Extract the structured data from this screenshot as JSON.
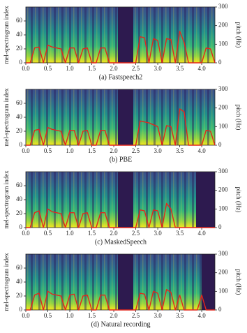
{
  "chart_data": [
    {
      "type": "line",
      "caption": "(a) Fastspeech2",
      "ylabel": "mel-spectrogram index",
      "y2label": "pitch (Hz)",
      "xlim": [
        0,
        4.3
      ],
      "xticks": [
        {
          "value": 0,
          "label": "0.0"
        },
        {
          "value": 0.5,
          "label": "0.5"
        },
        {
          "value": 1,
          "label": "1.0"
        },
        {
          "value": 1.5,
          "label": "1.5"
        },
        {
          "value": 2,
          "label": "2.0"
        },
        {
          "value": 2.5,
          "label": "2.5"
        },
        {
          "value": 3,
          "label": "3.0"
        },
        {
          "value": 3.5,
          "label": "3.5"
        },
        {
          "value": 4,
          "label": "4.0"
        }
      ],
      "ylim": [
        0,
        80
      ],
      "yticks": [
        0,
        20,
        40,
        60
      ],
      "y2lim": [
        0,
        300
      ],
      "y2ticks": [
        0,
        100,
        200,
        300
      ],
      "x": [
        0,
        0.1,
        0.2,
        0.3,
        0.4,
        0.5,
        0.6,
        0.7,
        0.8,
        0.9,
        1,
        1.1,
        1.2,
        1.3,
        1.4,
        1.5,
        1.6,
        1.7,
        1.8,
        1.9,
        2,
        2.1,
        2.2,
        2.3,
        2.4,
        2.5,
        2.6,
        2.7,
        2.8,
        2.9,
        3,
        3.1,
        3.2,
        3.3,
        3.4,
        3.5,
        3.6,
        3.7,
        3.8,
        3.9,
        4,
        4.1,
        4.2,
        4.3
      ],
      "series": [
        {
          "color": "#e3261c",
          "axis": "y2",
          "values": [
            0,
            0,
            80,
            85,
            0,
            95,
            85,
            80,
            75,
            0,
            80,
            80,
            0,
            75,
            80,
            0,
            0,
            80,
            80,
            0,
            0,
            0,
            0,
            0,
            0,
            0,
            140,
            135,
            0,
            130,
            120,
            0,
            130,
            125,
            0,
            170,
            110,
            0,
            0,
            0,
            0,
            80,
            75,
            0
          ]
        }
      ]
    },
    {
      "type": "line",
      "caption": "(b) PBE",
      "ylabel": "mel-spectrogram index",
      "y2label": "pitch (Hz)",
      "xlim": [
        0,
        4.3
      ],
      "xticks": [
        {
          "value": 0,
          "label": "0.0"
        },
        {
          "value": 0.5,
          "label": "0.5"
        },
        {
          "value": 1,
          "label": "1.0"
        },
        {
          "value": 1.5,
          "label": "1.5"
        },
        {
          "value": 2,
          "label": "2.0"
        },
        {
          "value": 2.5,
          "label": "2.5"
        },
        {
          "value": 3,
          "label": "3.0"
        },
        {
          "value": 3.5,
          "label": "3.5"
        },
        {
          "value": 4,
          "label": "4.0"
        }
      ],
      "ylim": [
        0,
        80
      ],
      "yticks": [
        0,
        20,
        40,
        60
      ],
      "y2lim": [
        0,
        300
      ],
      "y2ticks": [
        0,
        100,
        200,
        300
      ],
      "x": [
        0,
        0.1,
        0.2,
        0.3,
        0.4,
        0.5,
        0.6,
        0.7,
        0.8,
        0.9,
        1,
        1.1,
        1.2,
        1.3,
        1.4,
        1.5,
        1.6,
        1.7,
        1.8,
        1.9,
        2,
        2.1,
        2.2,
        2.3,
        2.4,
        2.5,
        2.6,
        2.7,
        2.8,
        2.9,
        3,
        3.1,
        3.2,
        3.3,
        3.4,
        3.5,
        3.6,
        3.7,
        3.8,
        3.9,
        4,
        4.1,
        4.2,
        4.3
      ],
      "series": [
        {
          "color": "#e3261c",
          "axis": "y2",
          "values": [
            0,
            0,
            80,
            85,
            0,
            95,
            85,
            80,
            75,
            0,
            80,
            80,
            0,
            75,
            80,
            0,
            0,
            80,
            80,
            0,
            0,
            0,
            0,
            0,
            0,
            0,
            130,
            125,
            120,
            110,
            100,
            0,
            105,
            100,
            0,
            195,
            180,
            0,
            0,
            0,
            0,
            80,
            75,
            0
          ]
        }
      ]
    },
    {
      "type": "line",
      "caption": "(c) MaskedSpeech",
      "ylabel": "mel-spectrogram index",
      "y2label": "pitch (Hz)",
      "xlim": [
        0,
        4.3
      ],
      "xticks": [
        {
          "value": 0,
          "label": "0.0"
        },
        {
          "value": 0.5,
          "label": "0.5"
        },
        {
          "value": 1,
          "label": "1.0"
        },
        {
          "value": 1.5,
          "label": "1.5"
        },
        {
          "value": 2,
          "label": "2.0"
        },
        {
          "value": 2.5,
          "label": "2.5"
        },
        {
          "value": 3,
          "label": "3.0"
        },
        {
          "value": 3.5,
          "label": "3.5"
        },
        {
          "value": 4,
          "label": "4.0"
        }
      ],
      "ylim": [
        0,
        80
      ],
      "yticks": [
        0,
        20,
        40,
        60
      ],
      "y2lim": [
        0,
        300
      ],
      "y2ticks": [
        0,
        100,
        200,
        300
      ],
      "x": [
        0,
        0.1,
        0.2,
        0.3,
        0.4,
        0.5,
        0.6,
        0.7,
        0.8,
        0.9,
        1,
        1.1,
        1.2,
        1.3,
        1.4,
        1.5,
        1.6,
        1.7,
        1.8,
        1.9,
        2,
        2.1,
        2.2,
        2.3,
        2.4,
        2.5,
        2.6,
        2.7,
        2.8,
        2.9,
        3,
        3.1,
        3.2,
        3.3,
        3.4,
        3.5,
        3.6,
        3.7,
        3.8,
        3.9,
        4,
        4.1,
        4.2,
        4.3
      ],
      "series": [
        {
          "color": "#e3261c",
          "axis": "y2",
          "values": [
            0,
            0,
            80,
            90,
            0,
            100,
            85,
            80,
            75,
            0,
            80,
            80,
            0,
            75,
            80,
            0,
            0,
            80,
            80,
            0,
            0,
            0,
            0,
            0,
            0,
            0,
            95,
            90,
            0,
            95,
            90,
            0,
            130,
            100,
            0,
            0,
            0,
            0,
            0,
            0,
            0,
            0,
            0,
            0
          ]
        }
      ]
    },
    {
      "type": "line",
      "caption": "(d) Natural recording",
      "ylabel": "mel-spectrogram index",
      "y2label": "pitch (Hz)",
      "xlim": [
        0,
        4.3
      ],
      "xticks": [
        {
          "value": 0,
          "label": "0.0"
        },
        {
          "value": 0.5,
          "label": "0.5"
        },
        {
          "value": 1,
          "label": "1.0"
        },
        {
          "value": 1.5,
          "label": "1.5"
        },
        {
          "value": 2,
          "label": "2.0"
        },
        {
          "value": 2.5,
          "label": "2.5"
        },
        {
          "value": 3,
          "label": "3.0"
        },
        {
          "value": 3.5,
          "label": "3.5"
        },
        {
          "value": 4,
          "label": "4.0"
        }
      ],
      "ylim": [
        0,
        80
      ],
      "yticks": [
        0,
        20,
        40,
        60
      ],
      "y2lim": [
        0,
        300
      ],
      "y2ticks": [
        0,
        100,
        200,
        300
      ],
      "x": [
        0,
        0.1,
        0.2,
        0.3,
        0.4,
        0.5,
        0.6,
        0.7,
        0.8,
        0.9,
        1,
        1.1,
        1.2,
        1.3,
        1.4,
        1.5,
        1.6,
        1.7,
        1.8,
        1.9,
        2,
        2.1,
        2.2,
        2.3,
        2.4,
        2.5,
        2.6,
        2.7,
        2.8,
        2.9,
        3,
        3.1,
        3.2,
        3.3,
        3.4,
        3.5,
        3.6,
        3.7,
        3.8,
        3.9,
        4,
        4.1,
        4.2,
        4.3
      ],
      "series": [
        {
          "color": "#e3261c",
          "axis": "y2",
          "values": [
            0,
            0,
            80,
            90,
            0,
            100,
            85,
            80,
            75,
            0,
            80,
            85,
            0,
            75,
            80,
            0,
            0,
            80,
            80,
            0,
            0,
            0,
            0,
            0,
            0,
            0,
            90,
            85,
            0,
            100,
            90,
            0,
            110,
            95,
            0,
            80,
            0,
            0,
            0,
            0,
            80,
            0,
            0,
            0
          ]
        }
      ]
    }
  ]
}
